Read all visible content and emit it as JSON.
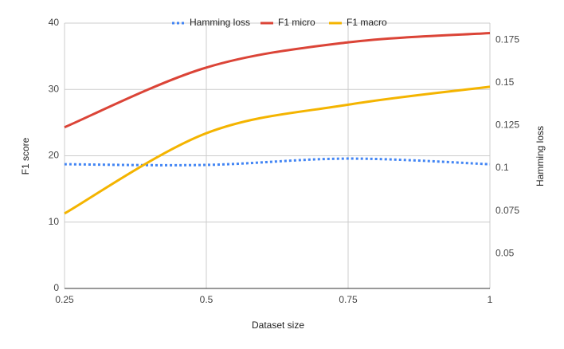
{
  "chart_data": {
    "type": "line",
    "x_label": "Dataset size",
    "y_label": "F1 score",
    "y2_label": "Hamming loss",
    "x": [
      0.25,
      0.5,
      0.75,
      1
    ],
    "series": [
      {
        "name": "Hamming loss",
        "color": "#4285f4",
        "axis": "y2",
        "style": "dotted",
        "values": [
          0.1023,
          0.1019,
          0.1056,
          0.1023
        ]
      },
      {
        "name": "F1 micro",
        "color": "#db4437",
        "style": "solid",
        "values": [
          24.3,
          33.3,
          37.1,
          38.5
        ]
      },
      {
        "name": "F1 macro",
        "color": "#f4b400",
        "style": "solid",
        "values": [
          11.3,
          23.4,
          27.7,
          30.4
        ]
      }
    ],
    "xlim": [
      0.25,
      1
    ],
    "xticks": [
      0.25,
      0.5,
      0.75,
      1
    ],
    "ylim": [
      0,
      40
    ],
    "yticks": [
      0,
      10,
      20,
      30,
      40
    ],
    "y2lim": [
      0.0296,
      0.1849
    ],
    "y2ticks": [
      0.05,
      0.075,
      0.1,
      0.125,
      0.15,
      0.175
    ],
    "grid": true,
    "legend": "top"
  }
}
